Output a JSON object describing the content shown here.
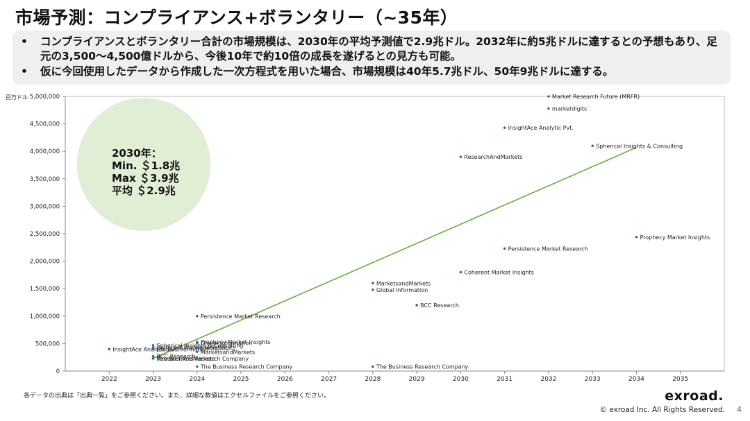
{
  "page": {
    "title": "市場予測：コンプライアンス+ボランタリー（~35年）",
    "bullets": [
      "コンプライアンスとボランタリー合計の市場規模は、2030年の平均予測値で2.9兆ドル。2032年に約5兆ドルに達するとの予想もあり、足元の3,500～4,500億ドルから、今後10年で約10倍の成長を遂げるとの見方も可能。",
      "仮に今回使用したデータから作成した一次方程式を用いた場合、市場規模は40年5.7兆ドル、50年9兆ドルに達する。"
    ],
    "bullet_symbol": "•",
    "callout": {
      "line1": "2030年：",
      "line2": "Min. ＄1.8兆",
      "line3": "Max ＄3.9兆",
      "line4": "平均 ＄2.9兆",
      "color": "#dfeed4"
    },
    "source_note": "各データの出典は「出典一覧」をご参照ください。また、詳細な数値はエクセルファイルをご参照ください。",
    "logo": "exroad.",
    "copyright": "© exroad Inc. All Rights Reserved.",
    "page_number": "4"
  },
  "chart_data": {
    "type": "scatter",
    "title": "",
    "xlabel": "",
    "ylabel": "百万ドル",
    "xlim": [
      2021,
      2036
    ],
    "ylim": [
      0,
      5000000
    ],
    "x_ticks": [
      2022,
      2023,
      2024,
      2025,
      2026,
      2027,
      2028,
      2029,
      2030,
      2031,
      2032,
      2033,
      2034,
      2035
    ],
    "y_ticks": [
      0,
      500000,
      1000000,
      1500000,
      2000000,
      2500000,
      3000000,
      3500000,
      4000000,
      4500000,
      5000000
    ],
    "y_tick_labels": [
      "0",
      "500,000",
      "1,000,000",
      "1,500,000",
      "2,000,000",
      "2,500,000",
      "3,000,000",
      "3,500,000",
      "4,000,000",
      "4,500,000",
      "5,000,000"
    ],
    "grid": false,
    "point_color": "#2e6bb0",
    "trend_color": "#6aab3e",
    "points": [
      {
        "x": 2022,
        "y": 400000,
        "label": "InsightAce Analytic Pvt."
      },
      {
        "x": 2023,
        "y": 470000,
        "label": "Spherical Insights & Consulting"
      },
      {
        "x": 2023,
        "y": 400000,
        "label": "Global Information"
      },
      {
        "x": 2023,
        "y": 430000,
        "label": "Coherent Market Insights"
      },
      {
        "x": 2023,
        "y": 270000,
        "label": "BCC Research"
      },
      {
        "x": 2023,
        "y": 230000,
        "label": "ResearchAndMarkets"
      },
      {
        "x": 2023,
        "y": 230000,
        "label": "The Business Research Company"
      },
      {
        "x": 2024,
        "y": 1000000,
        "label": "Persistence Market Research"
      },
      {
        "x": 2024,
        "y": 530000,
        "label": "Prophecy Market Insights"
      },
      {
        "x": 2024,
        "y": 510000,
        "label": "Global Information"
      },
      {
        "x": 2024,
        "y": 430000,
        "label": "marketdigits"
      },
      {
        "x": 2024,
        "y": 350000,
        "label": "MarketsandMarkets"
      },
      {
        "x": 2024,
        "y": 80000,
        "label": "The Business Research Company"
      },
      {
        "x": 2028,
        "y": 1600000,
        "label": "MarketsandMarkets"
      },
      {
        "x": 2028,
        "y": 1480000,
        "label": "Global Information"
      },
      {
        "x": 2028,
        "y": 80000,
        "label": "The Business Research Company"
      },
      {
        "x": 2029,
        "y": 1200000,
        "label": "BCC Research"
      },
      {
        "x": 2030,
        "y": 3900000,
        "label": "ResearchAndMarkets"
      },
      {
        "x": 2030,
        "y": 1800000,
        "label": "Coherent Market Insights"
      },
      {
        "x": 2031,
        "y": 4430000,
        "label": "InsightAce Analytic Pvt."
      },
      {
        "x": 2031,
        "y": 2230000,
        "label": "Persistence Market Research"
      },
      {
        "x": 2032,
        "y": 5000000,
        "label": "Market Research Future (MRFR)"
      },
      {
        "x": 2032,
        "y": 4780000,
        "label": "marketdigits"
      },
      {
        "x": 2033,
        "y": 4100000,
        "label": "Spherical Insights & Consulting"
      },
      {
        "x": 2034,
        "y": 2440000,
        "label": "Prophecy Market Insights"
      }
    ],
    "trendline": {
      "x": [
        2023,
        2034
      ],
      "y": [
        230000,
        4070000
      ]
    }
  }
}
